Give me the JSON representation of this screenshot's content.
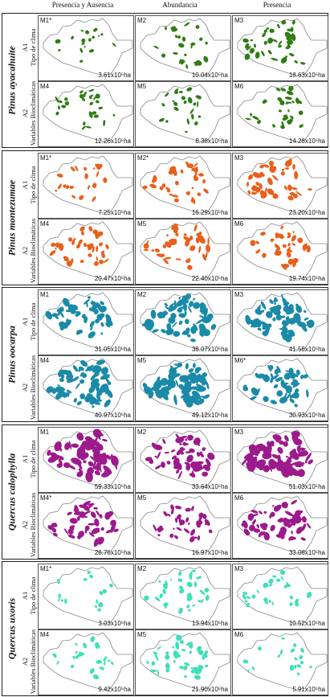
{
  "headers": [
    "Presencia y Ausencia",
    "Abundancia",
    "Presencia"
  ],
  "rows": [
    {
      "code": "A1",
      "text": "Tipo de clima"
    },
    {
      "code": "A2",
      "text": "Variables Bioclimáticas"
    }
  ],
  "species": [
    {
      "name": "Pinus ayacahuite",
      "color": "#2f7d14",
      "panels": [
        [
          "M1*",
          "3.61x10⁵ha"
        ],
        [
          "M2",
          "10.04x10⁵ha"
        ],
        [
          "M3",
          "18.63x10⁵ha"
        ],
        [
          "M4",
          "12.26x10⁵ha"
        ],
        [
          "M5",
          "8.38x10⁵ha"
        ],
        [
          "M6",
          "14.28x10⁵ha"
        ]
      ]
    },
    {
      "name": "Pinus montezumae",
      "color": "#e8601c",
      "panels": [
        [
          "M1*",
          "7.25x10⁵ha"
        ],
        [
          "M2*",
          "16.29x10⁵ha"
        ],
        [
          "M3",
          "23.20x10⁵ha"
        ],
        [
          "M4",
          "20.47x10⁵ha"
        ],
        [
          "M5",
          "22.40x10⁵ha"
        ],
        [
          "M6",
          "19.74x10⁵ha"
        ]
      ]
    },
    {
      "name": "Pinus oocarpa",
      "color": "#1a8aa8",
      "panels": [
        [
          "M1",
          "31.05x10⁵ha"
        ],
        [
          "M2",
          "38.07x10⁵ha"
        ],
        [
          "M3",
          "41.58x10⁵ha"
        ],
        [
          "M4",
          "40.97x10⁵ha"
        ],
        [
          "M5",
          "49.12x10⁵ha"
        ],
        [
          "M6*",
          "30.93x10⁵ha"
        ]
      ]
    },
    {
      "name": "Quercus calophylla",
      "color": "#9c1a8c",
      "panels": [
        [
          "M1",
          "59.33x10⁵ha"
        ],
        [
          "M2",
          "33.64x10⁵ha"
        ],
        [
          "M3",
          "51.03x10⁵ha"
        ],
        [
          "M4*",
          "28.76x10⁵ha"
        ],
        [
          "M5",
          "16.97x10⁵ha"
        ],
        [
          "M6",
          "33.08x10⁵ha"
        ]
      ]
    },
    {
      "name": "Quercus uxoris",
      "color": "#3fe0b8",
      "panels": [
        [
          "M1*",
          "3.03x10⁵ha"
        ],
        [
          "M2",
          "13.94x10⁵ha"
        ],
        [
          "M3",
          "10.52x10⁵ha"
        ],
        [
          "M4",
          "9.42x10⁵ha"
        ],
        [
          "M5",
          "21.90x10⁵ha"
        ],
        [
          "M6",
          "5.91x10⁵ha"
        ]
      ]
    }
  ]
}
